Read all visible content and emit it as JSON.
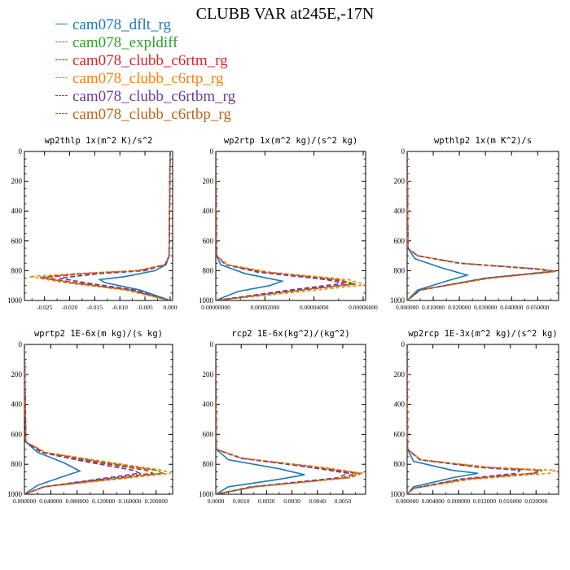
{
  "page": {
    "title": "CLUBB VAR at245E,-17N"
  },
  "legend": [
    {
      "label": "cam078_dflt_rg",
      "color": "#1f77b4",
      "dash": ""
    },
    {
      "label": "cam078_expldiff",
      "color": "#2ca02c",
      "dash": "6,3"
    },
    {
      "label": "cam078_clubb_c6rtm_rg",
      "color": "#d62728",
      "dash": "6,3"
    },
    {
      "label": "cam078_clubb_c6rtp_rg",
      "color": "#ff7f0e",
      "dash": "4,3"
    },
    {
      "label": "cam078_clubb_c6rtbm_rg",
      "color": "#6a3d9a",
      "dash": "6,3"
    },
    {
      "label": "cam078_clubb_c6rtbp_rg",
      "color": "#b5651d",
      "dash": "2,2"
    }
  ],
  "chart_data": [
    {
      "type": "line",
      "title": "wp2thlp  1x(m^2 K)/s^2",
      "xlim": [
        -0.029,
        0.0005
      ],
      "ylim": [
        1000,
        0
      ],
      "xticks": [
        -0.025,
        -0.02,
        -0.015,
        -0.01,
        -0.005,
        0.0
      ],
      "xticklabels": [
        "-0.025",
        "-0.020",
        "-0.015",
        "-0.010",
        "-0.005",
        "0.000"
      ],
      "yticks": [
        0,
        200,
        400,
        600,
        800,
        1000
      ],
      "x_label_of_peak_pressure": 850,
      "series": [
        {
          "name": "cam078_dflt_rg",
          "x": [
            0.0,
            -0.0002,
            -0.0008,
            -0.003,
            -0.009,
            -0.014,
            -0.013,
            -0.006,
            0.0
          ],
          "y": [
            0,
            700,
            760,
            800,
            840,
            860,
            880,
            930,
            1000
          ]
        },
        {
          "name": "cam078_expldiff",
          "x": [
            0.0,
            -0.0002,
            -0.001,
            -0.006,
            -0.017,
            -0.026,
            -0.02,
            -0.008,
            0.0
          ],
          "y": [
            0,
            700,
            760,
            800,
            820,
            845,
            880,
            930,
            1000
          ]
        },
        {
          "name": "cam078_clubb_c6rtm_rg",
          "x": [
            0.0,
            -0.0002,
            -0.001,
            -0.006,
            -0.017,
            -0.025,
            -0.019,
            -0.008,
            0.0
          ],
          "y": [
            0,
            700,
            760,
            800,
            820,
            845,
            880,
            930,
            1000
          ]
        },
        {
          "name": "cam078_clubb_c6rtp_rg",
          "x": [
            0.0,
            -0.0002,
            -0.001,
            -0.007,
            -0.019,
            -0.028,
            -0.021,
            -0.009,
            0.0
          ],
          "y": [
            0,
            700,
            760,
            800,
            820,
            840,
            880,
            930,
            1000
          ]
        },
        {
          "name": "cam078_clubb_c6rtbm_rg",
          "x": [
            0.0,
            -0.0002,
            -0.001,
            -0.005,
            -0.014,
            -0.022,
            -0.017,
            -0.007,
            0.0
          ],
          "y": [
            0,
            700,
            760,
            800,
            820,
            850,
            880,
            930,
            1000
          ]
        },
        {
          "name": "cam078_clubb_c6rtbp_rg",
          "x": [
            0.0,
            -0.0002,
            -0.001,
            -0.006,
            -0.018,
            -0.026,
            -0.02,
            -0.008,
            0.0
          ],
          "y": [
            0,
            700,
            760,
            800,
            820,
            845,
            880,
            930,
            1000
          ]
        }
      ]
    },
    {
      "type": "line",
      "title": "wp2rtp  1x(m^2 kg)/(s^2 kg)",
      "xlim": [
        0.0,
        6.1e-05
      ],
      "ylim": [
        1000,
        0
      ],
      "xticks": [
        0.0,
        2e-05,
        4e-05,
        6e-05
      ],
      "xticklabels": [
        "0.00000000",
        "0.00002000",
        "0.00004000",
        "0.00006000"
      ],
      "yticks": [
        0,
        200,
        400,
        600,
        800,
        1000
      ],
      "series": [
        {
          "name": "cam078_dflt_rg",
          "x": [
            0.0,
            3e-07,
            2e-06,
            1.2e-05,
            2.7e-05,
            2.2e-05,
            9e-06,
            0.0
          ],
          "y": [
            0,
            700,
            760,
            820,
            870,
            900,
            940,
            1000
          ]
        },
        {
          "name": "cam078_expldiff",
          "x": [
            0.0,
            3e-07,
            4e-06,
            2e-05,
            5e-05,
            5.7e-05,
            3.5e-05,
            0.0
          ],
          "y": [
            0,
            700,
            760,
            810,
            860,
            890,
            930,
            1000
          ]
        },
        {
          "name": "cam078_clubb_c6rtm_rg",
          "x": [
            0.0,
            3e-07,
            4e-06,
            1.9e-05,
            4.8e-05,
            5.5e-05,
            3.3e-05,
            0.0
          ],
          "y": [
            0,
            700,
            760,
            810,
            860,
            890,
            930,
            1000
          ]
        },
        {
          "name": "cam078_clubb_c6rtp_rg",
          "x": [
            0.0,
            3e-07,
            5e-06,
            2.2e-05,
            5.4e-05,
            6.1e-05,
            3.8e-05,
            0.0
          ],
          "y": [
            0,
            700,
            760,
            810,
            860,
            895,
            935,
            1000
          ]
        },
        {
          "name": "cam078_clubb_c6rtbm_rg",
          "x": [
            0.0,
            3e-07,
            4e-06,
            1.7e-05,
            4.5e-05,
            5.2e-05,
            3e-05,
            0.0
          ],
          "y": [
            0,
            700,
            760,
            810,
            860,
            885,
            930,
            1000
          ]
        },
        {
          "name": "cam078_clubb_c6rtbp_rg",
          "x": [
            0.0,
            3e-07,
            4e-06,
            2e-05,
            5e-05,
            5.7e-05,
            3.5e-05,
            0.0
          ],
          "y": [
            0,
            700,
            760,
            810,
            860,
            890,
            930,
            1000
          ]
        }
      ]
    },
    {
      "type": "line",
      "title": "wpthlp2  1x(m K^2)/s",
      "xlim": [
        0.0,
        0.058
      ],
      "ylim": [
        1000,
        0
      ],
      "xticks": [
        0.0,
        0.01,
        0.02,
        0.03,
        0.04,
        0.05
      ],
      "xticklabels": [
        "0.000000",
        "0.010000",
        "0.020000",
        "0.030000",
        "0.040000",
        "0.050000"
      ],
      "yticks": [
        0,
        200,
        400,
        600,
        800,
        1000
      ],
      "series": [
        {
          "name": "cam078_dflt_rg",
          "x": [
            0.0,
            0.0003,
            0.003,
            0.013,
            0.023,
            0.015,
            0.004,
            0.0
          ],
          "y": [
            0,
            650,
            720,
            780,
            830,
            870,
            930,
            1000
          ]
        },
        {
          "name": "cam078_expldiff",
          "x": [
            0.0,
            0.0003,
            0.004,
            0.02,
            0.05,
            0.055,
            0.03,
            0.005,
            0.0
          ],
          "y": [
            0,
            650,
            700,
            750,
            790,
            805,
            850,
            930,
            1000
          ]
        },
        {
          "name": "cam078_clubb_c6rtm_rg",
          "x": [
            0.0,
            0.0003,
            0.004,
            0.02,
            0.051,
            0.057,
            0.031,
            0.005,
            0.0
          ],
          "y": [
            0,
            650,
            700,
            750,
            790,
            805,
            850,
            930,
            1000
          ]
        },
        {
          "name": "cam078_clubb_c6rtp_rg",
          "x": [
            0.0,
            0.0003,
            0.004,
            0.021,
            0.052,
            0.057,
            0.032,
            0.005,
            0.0
          ],
          "y": [
            0,
            650,
            700,
            750,
            790,
            805,
            850,
            930,
            1000
          ]
        },
        {
          "name": "cam078_clubb_c6rtbm_rg",
          "x": [
            0.0,
            0.0003,
            0.004,
            0.02,
            0.05,
            0.056,
            0.03,
            0.005,
            0.0
          ],
          "y": [
            0,
            650,
            700,
            750,
            790,
            805,
            850,
            930,
            1000
          ]
        },
        {
          "name": "cam078_clubb_c6rtbp_rg",
          "x": [
            0.0,
            0.0003,
            0.004,
            0.02,
            0.051,
            0.057,
            0.031,
            0.005,
            0.0
          ],
          "y": [
            0,
            650,
            700,
            750,
            790,
            805,
            850,
            930,
            1000
          ]
        }
      ]
    },
    {
      "type": "line",
      "title": "wprtp2  1E-6x(m kg)/(s kg)",
      "xlim": [
        0.0,
        0.225
      ],
      "ylim": [
        1000,
        0
      ],
      "xticks": [
        0.0,
        0.04,
        0.08,
        0.12,
        0.16,
        0.2
      ],
      "xticklabels": [
        "0.000000",
        "0.040000",
        "0.080000",
        "0.120000",
        "0.160000",
        "0.200000"
      ],
      "yticks": [
        0,
        200,
        400,
        600,
        800,
        1000
      ],
      "series": [
        {
          "name": "cam078_dflt_rg",
          "x": [
            0.0,
            0.002,
            0.02,
            0.06,
            0.084,
            0.06,
            0.02,
            0.0
          ],
          "y": [
            0,
            650,
            720,
            790,
            845,
            880,
            940,
            1000
          ]
        },
        {
          "name": "cam078_expldiff",
          "x": [
            0.0,
            0.002,
            0.03,
            0.11,
            0.2,
            0.21,
            0.13,
            0.03,
            0.0
          ],
          "y": [
            0,
            650,
            720,
            780,
            840,
            860,
            900,
            950,
            1000
          ]
        },
        {
          "name": "cam078_clubb_c6rtm_rg",
          "x": [
            0.0,
            0.002,
            0.028,
            0.1,
            0.185,
            0.195,
            0.12,
            0.03,
            0.0
          ],
          "y": [
            0,
            650,
            720,
            780,
            840,
            860,
            900,
            950,
            1000
          ]
        },
        {
          "name": "cam078_clubb_c6rtp_rg",
          "x": [
            0.0,
            0.002,
            0.032,
            0.12,
            0.21,
            0.222,
            0.14,
            0.03,
            0.0
          ],
          "y": [
            0,
            650,
            720,
            780,
            840,
            860,
            900,
            950,
            1000
          ]
        },
        {
          "name": "cam078_clubb_c6rtbm_rg",
          "x": [
            0.0,
            0.002,
            0.025,
            0.09,
            0.165,
            0.175,
            0.11,
            0.03,
            0.0
          ],
          "y": [
            0,
            650,
            720,
            780,
            840,
            860,
            900,
            950,
            1000
          ]
        },
        {
          "name": "cam078_clubb_c6rtbp_rg",
          "x": [
            0.0,
            0.002,
            0.03,
            0.11,
            0.2,
            0.21,
            0.13,
            0.03,
            0.0
          ],
          "y": [
            0,
            650,
            720,
            780,
            840,
            860,
            900,
            950,
            1000
          ]
        }
      ]
    },
    {
      "type": "line",
      "title": "rcp2  1E-6x(kg^2)/(kg^2)",
      "xlim": [
        0.0,
        0.0059
      ],
      "ylim": [
        1000,
        0
      ],
      "xticks": [
        0.0,
        0.001,
        0.002,
        0.003,
        0.004,
        0.005
      ],
      "xticklabels": [
        "0.0000",
        "0.0010",
        "0.0020",
        "0.0030",
        "0.0040",
        "0.0050"
      ],
      "yticks": [
        0,
        200,
        400,
        600,
        800,
        1000
      ],
      "series": [
        {
          "name": "cam078_dflt_rg",
          "x": [
            0.0,
            2e-05,
            0.0005,
            0.0025,
            0.0035,
            0.0025,
            0.0005,
            0.0
          ],
          "y": [
            0,
            700,
            770,
            830,
            870,
            900,
            950,
            1000
          ]
        },
        {
          "name": "cam078_expldiff",
          "x": [
            0.0,
            2e-05,
            0.001,
            0.004,
            0.0057,
            0.0052,
            0.0015,
            0.0
          ],
          "y": [
            0,
            700,
            760,
            820,
            860,
            890,
            950,
            1000
          ]
        },
        {
          "name": "cam078_clubb_c6rtm_rg",
          "x": [
            0.0,
            2e-05,
            0.001,
            0.0039,
            0.0055,
            0.005,
            0.0015,
            0.0
          ],
          "y": [
            0,
            700,
            760,
            820,
            860,
            890,
            950,
            1000
          ]
        },
        {
          "name": "cam078_clubb_c6rtp_rg",
          "x": [
            0.0,
            2e-05,
            0.0011,
            0.0042,
            0.0058,
            0.0053,
            0.0016,
            0.0
          ],
          "y": [
            0,
            700,
            760,
            820,
            860,
            890,
            950,
            1000
          ]
        },
        {
          "name": "cam078_clubb_c6rtbm_rg",
          "x": [
            0.0,
            2e-05,
            0.001,
            0.0037,
            0.0052,
            0.0048,
            0.0014,
            0.0
          ],
          "y": [
            0,
            700,
            760,
            820,
            860,
            890,
            950,
            1000
          ]
        },
        {
          "name": "cam078_clubb_c6rtbp_rg",
          "x": [
            0.0,
            2e-05,
            0.001,
            0.004,
            0.0056,
            0.0051,
            0.0015,
            0.0
          ],
          "y": [
            0,
            700,
            760,
            820,
            860,
            890,
            950,
            1000
          ]
        }
      ]
    },
    {
      "type": "line",
      "title": "wp2rcp  1E-3x(m^2 kg)/(s^2 kg)",
      "xlim": [
        0.0,
        0.0235
      ],
      "ylim": [
        1000,
        0
      ],
      "xticks": [
        0.0,
        0.004,
        0.008,
        0.012,
        0.016,
        0.02
      ],
      "xticklabels": [
        "0.000000",
        "0.004000",
        "0.008000",
        "0.012000",
        "0.016000",
        "0.020000"
      ],
      "yticks": [
        0,
        200,
        400,
        600,
        800,
        1000
      ],
      "series": [
        {
          "name": "cam078_dflt_rg",
          "x": [
            0.0,
            5e-05,
            0.001,
            0.007,
            0.011,
            0.007,
            0.001,
            0.0
          ],
          "y": [
            0,
            700,
            780,
            840,
            860,
            890,
            950,
            1000
          ]
        },
        {
          "name": "cam078_expldiff",
          "x": [
            0.0,
            5e-05,
            0.002,
            0.012,
            0.021,
            0.02,
            0.009,
            0.001,
            0.0
          ],
          "y": [
            0,
            700,
            770,
            820,
            840,
            860,
            900,
            960,
            1000
          ]
        },
        {
          "name": "cam078_clubb_c6rtm_rg",
          "x": [
            0.0,
            5e-05,
            0.002,
            0.012,
            0.0205,
            0.0195,
            0.0085,
            0.001,
            0.0
          ],
          "y": [
            0,
            700,
            770,
            820,
            840,
            860,
            900,
            960,
            1000
          ]
        },
        {
          "name": "cam078_clubb_c6rtp_rg",
          "x": [
            0.0,
            5e-05,
            0.0022,
            0.013,
            0.023,
            0.022,
            0.01,
            0.001,
            0.0
          ],
          "y": [
            0,
            700,
            770,
            820,
            840,
            860,
            900,
            960,
            1000
          ]
        },
        {
          "name": "cam078_clubb_c6rtbm_rg",
          "x": [
            0.0,
            5e-05,
            0.002,
            0.011,
            0.0175,
            0.017,
            0.008,
            0.001,
            0.0
          ],
          "y": [
            0,
            700,
            770,
            820,
            840,
            860,
            900,
            960,
            1000
          ]
        },
        {
          "name": "cam078_clubb_c6rtbp_rg",
          "x": [
            0.0,
            5e-05,
            0.002,
            0.012,
            0.0205,
            0.0195,
            0.0085,
            0.001,
            0.0
          ],
          "y": [
            0,
            700,
            770,
            820,
            840,
            860,
            900,
            960,
            1000
          ]
        }
      ]
    }
  ]
}
